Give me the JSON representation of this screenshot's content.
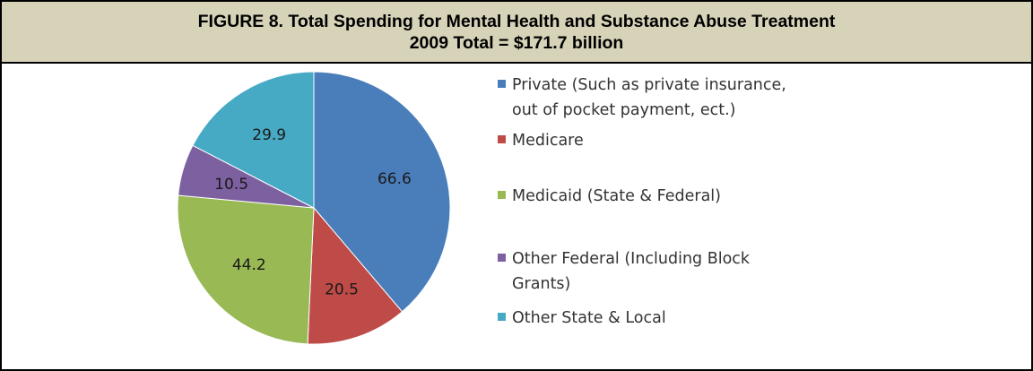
{
  "figure": {
    "title_line1": "FIGURE 8. Total Spending for Mental Health and Substance Abuse Treatment",
    "title_line2": "2009 Total = $171.7 billion"
  },
  "chart_data": {
    "type": "pie",
    "title": "FIGURE 8. Total Spending for Mental Health and Substance Abuse Treatment 2009 Total = $171.7 billion",
    "legend_position": "right",
    "slices": [
      {
        "label": "Private (Such as private insurance, out of pocket payment, ect.)",
        "legend_lines": [
          "Private (Such as private insurance,",
          "out of pocket payment, ect.)"
        ],
        "value": 66.6,
        "value_label": "66.6",
        "color": "#4a7ebb"
      },
      {
        "label": "Medicare",
        "legend_lines": [
          "Medicare"
        ],
        "value": 20.5,
        "value_label": "20.5",
        "color": "#be4b48"
      },
      {
        "label": "Medicaid (State & Federal)",
        "legend_lines": [
          "Medicaid (State & Federal)"
        ],
        "value": 44.2,
        "value_label": "44.2",
        "color": "#98b954"
      },
      {
        "label": "Other Federal (Including Block Grants)",
        "legend_lines": [
          "Other Federal (Including Block",
          "Grants)"
        ],
        "value": 10.5,
        "value_label": "10.5",
        "color": "#7d60a0"
      },
      {
        "label": "Other State & Local",
        "legend_lines": [
          "Other State & Local"
        ],
        "value": 29.9,
        "value_label": "29.9",
        "color": "#46aac5"
      }
    ]
  }
}
